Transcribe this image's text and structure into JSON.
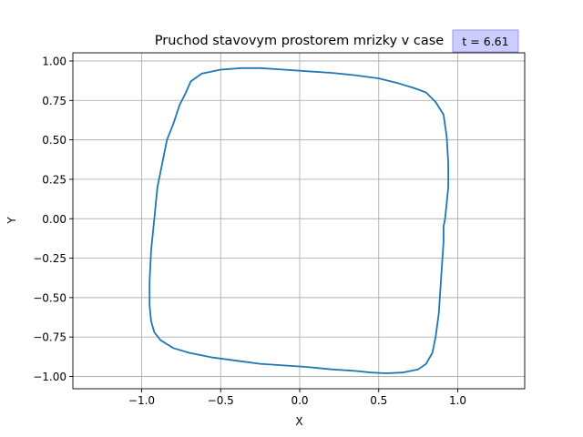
{
  "chart_data": {
    "type": "line",
    "title": "Pruchod stavovym prostorem mrizky v case",
    "xlabel": "X",
    "ylabel": "Y",
    "xlim": [
      -1.0,
      1.0
    ],
    "ylim": [
      -1.07,
      1.05
    ],
    "xticks": [
      -1.0,
      -0.5,
      0.0,
      0.5,
      1.0
    ],
    "xtick_labels": [
      "−1.0",
      "−0.5",
      "0.0",
      "0.5",
      "1.0"
    ],
    "yticks": [
      1.0,
      0.75,
      0.5,
      0.25,
      0.0,
      -0.25,
      -0.5,
      -0.75,
      -1.0
    ],
    "ytick_labels": [
      "1.00",
      "0.75",
      "0.50",
      "0.25",
      "0.00",
      "−0.25",
      "−0.50",
      "−0.75",
      "−1.00"
    ],
    "grid": true,
    "annotation": "t = 6.61",
    "colors": {
      "line": "#1f77b4",
      "grid": "#b0b0b0",
      "annotation_bg": "#ccccff",
      "annotation_border": "#9999dd"
    },
    "series": [
      {
        "x": [
          0.92,
          0.93,
          0.94,
          0.94,
          0.93,
          0.91,
          0.86,
          0.8,
          0.72,
          0.62,
          0.5,
          0.35,
          0.2,
          0.05,
          -0.1,
          -0.25,
          -0.37,
          -0.5,
          -0.62,
          -0.69,
          -0.72,
          -0.76,
          -0.8,
          -0.84,
          -0.87,
          -0.9,
          -0.92,
          -0.94,
          -0.95,
          -0.95,
          -0.94,
          -0.92,
          -0.88,
          -0.8,
          -0.7,
          -0.55,
          -0.4,
          -0.25,
          -0.1,
          0.05,
          0.2,
          0.35,
          0.45,
          0.55,
          0.65,
          0.75,
          0.8,
          0.84,
          0.86,
          0.88,
          0.89,
          0.9,
          0.91,
          0.91,
          0.92,
          0.92
        ],
        "y": [
          0.0,
          0.1,
          0.2,
          0.35,
          0.52,
          0.66,
          0.74,
          0.8,
          0.83,
          0.86,
          0.89,
          0.91,
          0.925,
          0.935,
          0.945,
          0.955,
          0.955,
          0.945,
          0.92,
          0.87,
          0.8,
          0.72,
          0.6,
          0.5,
          0.35,
          0.2,
          0.0,
          -0.2,
          -0.4,
          -0.55,
          -0.65,
          -0.72,
          -0.77,
          -0.82,
          -0.85,
          -0.88,
          -0.9,
          -0.92,
          -0.93,
          -0.94,
          -0.955,
          -0.965,
          -0.975,
          -0.98,
          -0.975,
          -0.955,
          -0.92,
          -0.85,
          -0.75,
          -0.6,
          -0.45,
          -0.3,
          -0.15,
          -0.05,
          0.0,
          0.0
        ]
      }
    ]
  }
}
